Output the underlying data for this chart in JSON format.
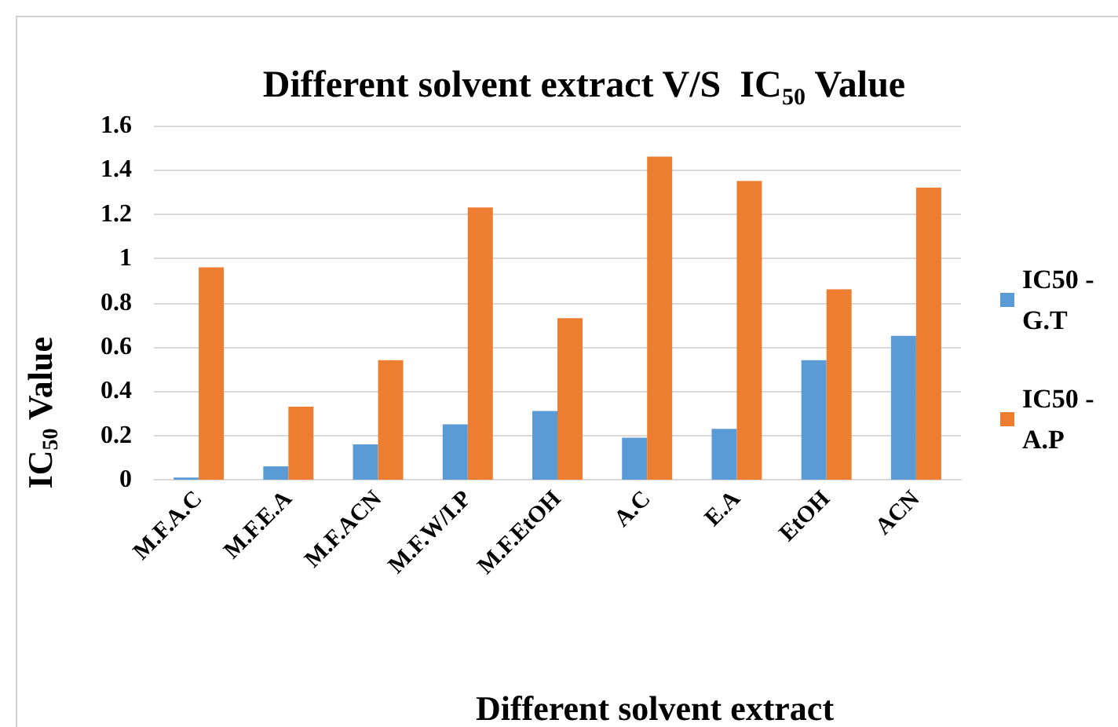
{
  "chart_data": {
    "type": "bar",
    "title": "Different solvent extract V/S  IC$_{50}$ Value",
    "xlabel": "Different solvent extract",
    "ylabel": "IC$_{50}$ Value",
    "categories": [
      "M.F.A.C",
      "M.F.E.A",
      "M.F.ACN",
      "M.F.W/I.P",
      "M.F.EtOH",
      "A.C",
      "E.A",
      "EtOH",
      "ACN"
    ],
    "series": [
      {
        "name": "IC50 - G.T",
        "color": "#5b9bd5",
        "values": [
          0.01,
          0.06,
          0.16,
          0.25,
          0.31,
          0.19,
          0.23,
          0.54,
          0.65
        ]
      },
      {
        "name": "IC50 - A.P",
        "color": "#ed7d31",
        "values": [
          0.96,
          0.33,
          0.54,
          1.23,
          0.73,
          1.46,
          1.35,
          0.86,
          1.32
        ]
      }
    ],
    "ylim": [
      0,
      1.6
    ],
    "yticks": [
      0,
      0.2,
      0.4,
      0.6,
      0.8,
      1,
      1.2,
      1.4,
      1.6
    ],
    "grid": "y",
    "legend": "right"
  }
}
